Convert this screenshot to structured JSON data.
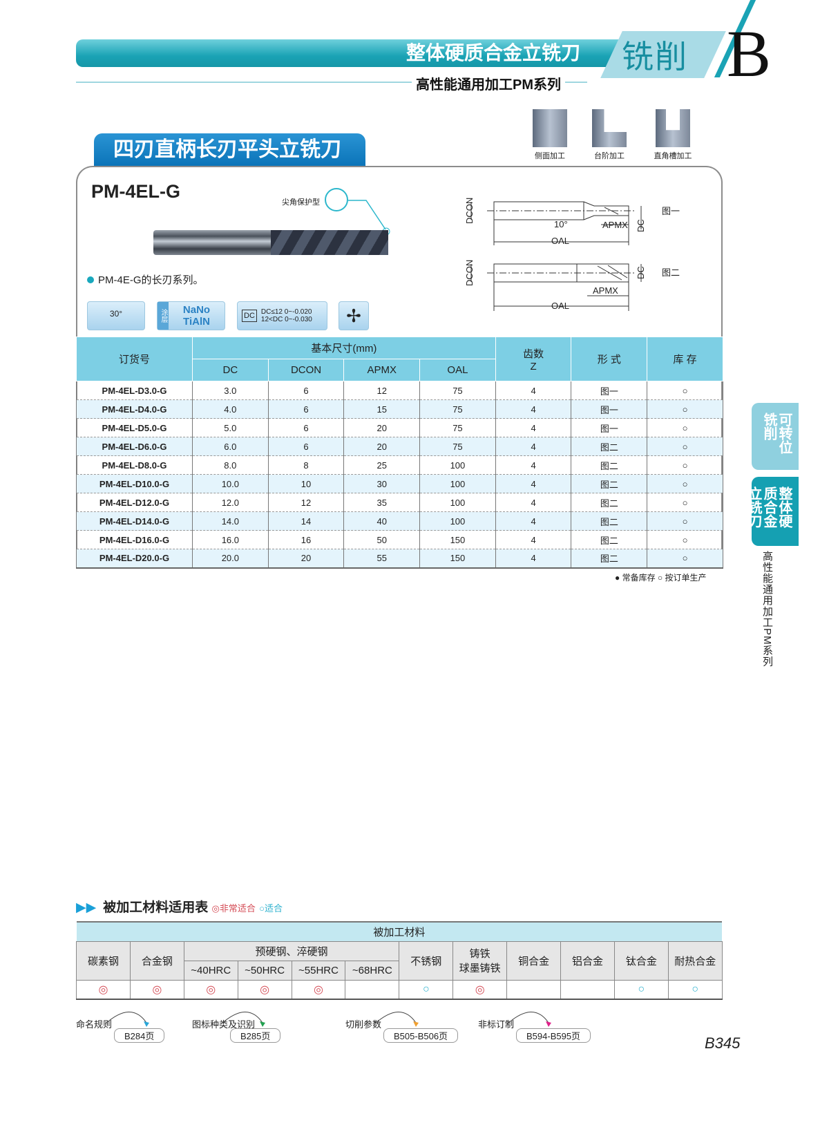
{
  "header": {
    "band_title": "整体硬质合金立铣刀",
    "category": "铣削",
    "chapter_letter": "B",
    "series": "高性能通用加工PM系列"
  },
  "section_title": "四刃直柄长刃平头立铣刀",
  "operations": [
    "侧面加工",
    "台阶加工",
    "直角槽加工"
  ],
  "product": {
    "model": "PM-4EL-G",
    "corner_label": "尖角保护型",
    "feature": "PM-4E-G的长刃系列。",
    "badges": {
      "helix": "30°",
      "coating_label": "涂层",
      "coating": "NaNo TiAlN",
      "tol_symbol": "DC",
      "tolerance": [
        "DC≤12  0~-0.020",
        "12<DC  0~-0.030"
      ]
    }
  },
  "diagram": {
    "labels": {
      "dcon": "DCON",
      "dc": "DC",
      "apmx": "APMX",
      "oal": "OAL",
      "angle": "10°"
    },
    "fig1": "图一",
    "fig2": "图二"
  },
  "spec_table": {
    "headers": {
      "order": "订货号",
      "basic": "基本尺寸(mm)",
      "dc": "DC",
      "dcon": "DCON",
      "apmx": "APMX",
      "oal": "OAL",
      "teeth": "齿数",
      "z": "Z",
      "form": "形 式",
      "stock": "库 存"
    },
    "rows": [
      [
        "PM-4EL-D3.0-G",
        "3.0",
        "6",
        "12",
        "75",
        "4",
        "图一",
        "○"
      ],
      [
        "PM-4EL-D4.0-G",
        "4.0",
        "6",
        "15",
        "75",
        "4",
        "图一",
        "○"
      ],
      [
        "PM-4EL-D5.0-G",
        "5.0",
        "6",
        "20",
        "75",
        "4",
        "图一",
        "○"
      ],
      [
        "PM-4EL-D6.0-G",
        "6.0",
        "6",
        "20",
        "75",
        "4",
        "图二",
        "○"
      ],
      [
        "PM-4EL-D8.0-G",
        "8.0",
        "8",
        "25",
        "100",
        "4",
        "图二",
        "○"
      ],
      [
        "PM-4EL-D10.0-G",
        "10.0",
        "10",
        "30",
        "100",
        "4",
        "图二",
        "○"
      ],
      [
        "PM-4EL-D12.0-G",
        "12.0",
        "12",
        "35",
        "100",
        "4",
        "图二",
        "○"
      ],
      [
        "PM-4EL-D14.0-G",
        "14.0",
        "14",
        "40",
        "100",
        "4",
        "图二",
        "○"
      ],
      [
        "PM-4EL-D16.0-G",
        "16.0",
        "16",
        "50",
        "150",
        "4",
        "图二",
        "○"
      ],
      [
        "PM-4EL-D20.0-G",
        "20.0",
        "20",
        "55",
        "150",
        "4",
        "图二",
        "○"
      ]
    ],
    "legend": "● 常备库存 ○ 按订单生产"
  },
  "side_tabs": {
    "tab1": "可转位铣削",
    "tab2": "整体硬质合金立铣刀",
    "vertical": "高性能通用加工PM系列"
  },
  "material": {
    "title": "被加工材料适用表",
    "legend_very": "◎非常适合",
    "legend_ok": "○适合",
    "header": "被加工材料",
    "hardened_group": "预硬钢、淬硬钢",
    "columns": [
      "碳素钢",
      "合金钢",
      "~40HRC",
      "~50HRC",
      "~55HRC",
      "~68HRC",
      "不锈钢",
      "铸铁\n球墨铸铁",
      "铜合金",
      "铝合金",
      "钛合金",
      "耐热合金"
    ],
    "ratings": [
      "◎",
      "◎",
      "◎",
      "◎",
      "◎",
      "",
      "○",
      "◎",
      "",
      "",
      "○",
      "○"
    ]
  },
  "references": [
    {
      "label": "命名规则",
      "page": "B284页",
      "color": "#2aa6d8"
    },
    {
      "label": "图标种类及识别",
      "page": "B285页",
      "color": "#22a050"
    },
    {
      "label": "切削参数",
      "page": "B505-B506页",
      "color": "#f0a030"
    },
    {
      "label": "非标订制",
      "page": "B594-B595页",
      "color": "#e0208a"
    }
  ],
  "page_number": "B345",
  "colors": {
    "accent": "#1aa3b5",
    "header_blue": "#7dcfe4",
    "very_suitable": "#d44b55",
    "suitable": "#2fb2cf"
  }
}
